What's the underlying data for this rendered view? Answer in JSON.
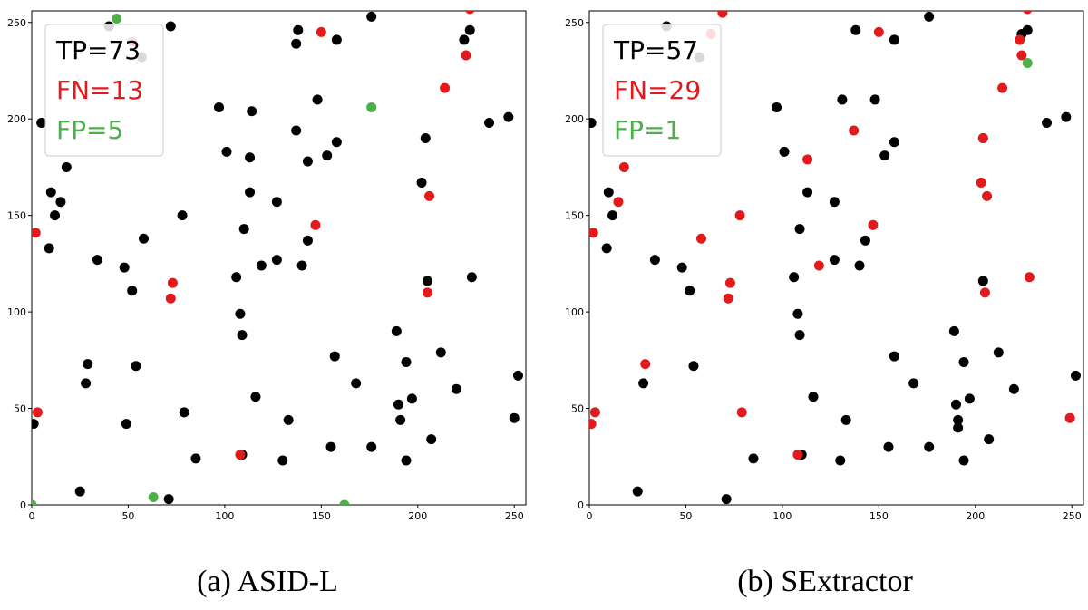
{
  "chart_data": [
    {
      "type": "scatter",
      "caption": "(a) ASID-L",
      "xlim": [
        0,
        256
      ],
      "ylim": [
        0,
        256
      ],
      "x_ticks": [
        0,
        50,
        100,
        150,
        200,
        250
      ],
      "y_ticks": [
        0,
        50,
        100,
        150,
        200,
        250
      ],
      "x_tick_labels": [
        "0",
        "50",
        "100",
        "150",
        "200",
        "250"
      ],
      "y_tick_labels": [
        "0",
        "50",
        "100",
        "150",
        "200",
        "250"
      ],
      "legend_placement": "top-left",
      "legend": [
        {
          "text": "TP=73",
          "color": "#000000"
        },
        {
          "text": "FN=13",
          "color": "#e31a1c"
        },
        {
          "text": "FP=5",
          "color": "#4daf4a"
        }
      ],
      "series": [
        {
          "name": "TP",
          "color": "#000000",
          "x": [
            1,
            5,
            9,
            10,
            12,
            15,
            18,
            25,
            28,
            29,
            34,
            48,
            49,
            52,
            54,
            58,
            72,
            78,
            79,
            85,
            97,
            101,
            106,
            108,
            109,
            109,
            110,
            113,
            113,
            114,
            116,
            119,
            127,
            127,
            130,
            133,
            137,
            138,
            140,
            143,
            143,
            155,
            157,
            158,
            158,
            168,
            176,
            176,
            189,
            190,
            191,
            194,
            194,
            197,
            202,
            204,
            205,
            207,
            212,
            220,
            224,
            227,
            228,
            237,
            247,
            250,
            252,
            57,
            137,
            153,
            71,
            148,
            40
          ],
          "y": [
            42,
            198,
            133,
            162,
            150,
            157,
            175,
            7,
            63,
            73,
            127,
            123,
            42,
            111,
            72,
            138,
            248,
            150,
            48,
            24,
            206,
            183,
            118,
            99,
            88,
            26,
            143,
            162,
            180,
            204,
            56,
            124,
            127,
            157,
            23,
            44,
            194,
            246,
            124,
            137,
            178,
            30,
            77,
            188,
            241,
            63,
            253,
            30,
            90,
            52,
            44,
            23,
            74,
            55,
            167,
            190,
            116,
            34,
            79,
            60,
            241,
            246,
            118,
            198,
            201,
            45,
            67,
            232,
            239,
            181,
            3,
            210,
            248
          ]
        },
        {
          "name": "FN",
          "color": "#e31a1c",
          "x": [
            2,
            3,
            72,
            73,
            108,
            147,
            150,
            205,
            206,
            214,
            225,
            227,
            52
          ],
          "y": [
            141,
            48,
            107,
            115,
            26,
            145,
            245,
            110,
            160,
            216,
            233,
            257,
            240
          ]
        },
        {
          "name": "FP",
          "color": "#4daf4a",
          "x": [
            0,
            44,
            63,
            162,
            176
          ],
          "y": [
            0,
            252,
            4,
            0,
            206
          ]
        }
      ]
    },
    {
      "type": "scatter",
      "caption": "(b) SExtractor",
      "xlim": [
        0,
        256
      ],
      "ylim": [
        0,
        256
      ],
      "x_ticks": [
        0,
        50,
        100,
        150,
        200,
        250
      ],
      "y_ticks": [
        0,
        50,
        100,
        150,
        200,
        250
      ],
      "x_tick_labels": [
        "0",
        "50",
        "100",
        "150",
        "200",
        "250"
      ],
      "y_tick_labels": [
        "0",
        "50",
        "100",
        "150",
        "200",
        "250"
      ],
      "legend_placement": "top-left",
      "legend": [
        {
          "text": "TP=57",
          "color": "#000000"
        },
        {
          "text": "FN=29",
          "color": "#e31a1c"
        },
        {
          "text": "FP=1",
          "color": "#4daf4a"
        }
      ],
      "series": [
        {
          "name": "TP",
          "color": "#000000",
          "x": [
            9,
            10,
            12,
            25,
            28,
            34,
            48,
            52,
            54,
            71,
            85,
            97,
            101,
            106,
            108,
            109,
            109,
            113,
            116,
            127,
            127,
            130,
            133,
            138,
            140,
            143,
            153,
            155,
            158,
            158,
            168,
            176,
            176,
            189,
            190,
            191,
            194,
            194,
            197,
            204,
            207,
            212,
            220,
            227,
            237,
            247,
            252,
            110,
            40,
            57,
            148,
            1,
            191,
            158,
            131,
            224,
            204
          ],
          "y": [
            133,
            162,
            150,
            7,
            63,
            127,
            123,
            111,
            72,
            3,
            24,
            206,
            183,
            118,
            99,
            88,
            143,
            162,
            56,
            127,
            157,
            23,
            44,
            246,
            124,
            137,
            181,
            30,
            188,
            241,
            63,
            253,
            30,
            90,
            52,
            44,
            23,
            74,
            55,
            116,
            34,
            79,
            60,
            246,
            198,
            201,
            67,
            26,
            248,
            232,
            210,
            198,
            40,
            77,
            210,
            244,
            190
          ]
        },
        {
          "name": "FN",
          "color": "#e31a1c",
          "x": [
            1,
            2,
            3,
            15,
            18,
            29,
            58,
            69,
            72,
            73,
            78,
            79,
            108,
            113,
            119,
            137,
            147,
            150,
            203,
            204,
            205,
            206,
            214,
            223,
            224,
            227,
            228,
            249,
            63
          ],
          "y": [
            42,
            141,
            48,
            157,
            175,
            73,
            138,
            255,
            107,
            115,
            150,
            48,
            26,
            179,
            124,
            194,
            145,
            245,
            167,
            190,
            110,
            160,
            216,
            241,
            233,
            257,
            118,
            45,
            244
          ]
        },
        {
          "name": "FP",
          "color": "#4daf4a",
          "x": [
            227
          ],
          "y": [
            229
          ]
        }
      ]
    }
  ]
}
